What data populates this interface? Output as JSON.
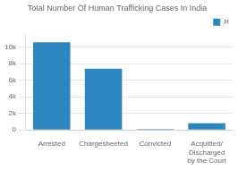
{
  "chart_data": {
    "type": "bar",
    "title": "Total Number Of Human Trafficking Cases In India",
    "categories": [
      "Arrested",
      "Chargesheeted",
      "Convicted",
      "Acquitted/ Discharged by the Court"
    ],
    "series": [
      {
        "name": "R",
        "color": "#2e86c1",
        "values": [
          10600,
          7400,
          100,
          800
        ]
      }
    ],
    "ylim": [
      0,
      11500
    ],
    "yticks": [
      0,
      {
        "value": 2000,
        "label": "2k"
      },
      {
        "value": 4000,
        "label": "4k"
      },
      {
        "value": 6000,
        "label": "6k"
      },
      {
        "value": 8000,
        "label": "8k"
      },
      {
        "value": 10000,
        "label": "10k"
      }
    ],
    "grid": true,
    "legend": "upper right"
  }
}
